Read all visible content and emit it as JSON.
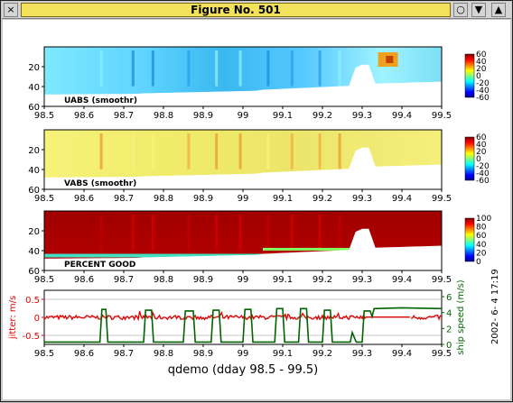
{
  "window": {
    "title": "Figure No. 501",
    "close_glyph": "×",
    "circle_glyph": "○",
    "min_glyph": "▼",
    "max_glyph": "▲"
  },
  "colors": {
    "title_bg": "#f2e15a",
    "jitter": "#e00000",
    "ship_speed": "#006400",
    "good_high": "#a00000"
  },
  "chart_data": [
    {
      "type": "heatmap",
      "panel_label": "UABS  (smoothr)",
      "x_ticks": [
        "98.5",
        "98.6",
        "98.7",
        "98.8",
        "98.9",
        "99",
        "99.1",
        "99.2",
        "99.3",
        "99.4",
        "99.5"
      ],
      "y_ticks": [
        "20",
        "40",
        "60"
      ],
      "ylim": [
        60,
        0
      ],
      "colorbar_ticks": [
        "60",
        "40",
        "20",
        "0",
        "-20",
        "-40",
        "-60"
      ],
      "colormap": "jet",
      "description_values": "mostly cyan/light blue (negative), yellow-orange patch near 99.35"
    },
    {
      "type": "heatmap",
      "panel_label": "VABS  (smoothr)",
      "x_ticks": [
        "98.5",
        "98.6",
        "98.7",
        "98.8",
        "98.9",
        "99",
        "99.1",
        "99.2",
        "99.3",
        "99.4",
        "99.5"
      ],
      "y_ticks": [
        "20",
        "40",
        "60"
      ],
      "ylim": [
        60,
        0
      ],
      "colorbar_ticks": [
        "60",
        "40",
        "20",
        "0",
        "-20",
        "-40",
        "-60"
      ],
      "colormap": "jet"
    },
    {
      "type": "heatmap",
      "panel_label": "PERCENT GOOD",
      "x_ticks": [
        "98.5",
        "98.6",
        "98.7",
        "98.8",
        "98.9",
        "99",
        "99.1",
        "99.2",
        "99.3",
        "99.4",
        "99.5"
      ],
      "y_ticks": [
        "20",
        "40",
        "60"
      ],
      "ylim": [
        60,
        0
      ],
      "colorbar_ticks": [
        "100",
        "80",
        "60",
        "40",
        "20",
        "0"
      ],
      "colormap": "jet"
    },
    {
      "type": "line",
      "x_ticks": [
        "98.5",
        "98.6",
        "98.7",
        "98.8",
        "98.9",
        "99",
        "99.1",
        "99.2",
        "99.3",
        "99.4",
        "99.5"
      ],
      "xlim": [
        98.5,
        99.5
      ],
      "left_axis": {
        "label": "jitter: m/s",
        "ticks": [
          "0.5",
          "0",
          "-0.5"
        ],
        "ylim": [
          -0.75,
          0.75
        ]
      },
      "right_axis": {
        "label": "ship speed (m/s)",
        "ticks": [
          "6",
          "4",
          "2",
          "0"
        ],
        "ylim": [
          0,
          6.8
        ]
      },
      "xlabel": "qdemo (dday 98.5 - 99.5)",
      "series": [
        {
          "name": "jitter",
          "color": "#e00000"
        },
        {
          "name": "ship speed",
          "color": "#006400"
        }
      ],
      "ship_speed_segments": [
        [
          98.5,
          0.3
        ],
        [
          98.64,
          0.3
        ],
        [
          98.645,
          4.4
        ],
        [
          98.655,
          4.4
        ],
        [
          98.66,
          0.3
        ],
        [
          98.75,
          0.3
        ],
        [
          98.755,
          4.3
        ],
        [
          98.77,
          4.3
        ],
        [
          98.775,
          0.3
        ],
        [
          98.85,
          0.3
        ],
        [
          98.855,
          4.2
        ],
        [
          98.875,
          4.2
        ],
        [
          98.88,
          0.3
        ],
        [
          98.92,
          0.3
        ],
        [
          98.925,
          4.3
        ],
        [
          98.94,
          4.3
        ],
        [
          98.945,
          0.3
        ],
        [
          99.0,
          0.3
        ],
        [
          99.005,
          4.4
        ],
        [
          99.02,
          4.4
        ],
        [
          99.025,
          0.3
        ],
        [
          99.08,
          0.3
        ],
        [
          99.085,
          4.5
        ],
        [
          99.1,
          4.5
        ],
        [
          99.105,
          0.3
        ],
        [
          99.14,
          0.3
        ],
        [
          99.145,
          4.5
        ],
        [
          99.16,
          4.5
        ],
        [
          99.165,
          0.3
        ],
        [
          99.2,
          0.3
        ],
        [
          99.205,
          4.3
        ],
        [
          99.22,
          4.3
        ],
        [
          99.225,
          0.3
        ],
        [
          99.27,
          0.3
        ],
        [
          99.275,
          1.5
        ],
        [
          99.285,
          0.3
        ],
        [
          99.3,
          0.3
        ],
        [
          99.305,
          4.2
        ],
        [
          99.32,
          4.2
        ],
        [
          99.325,
          3.5
        ],
        [
          99.33,
          4.5
        ],
        [
          99.4,
          4.6
        ],
        [
          99.5,
          4.5
        ]
      ]
    }
  ],
  "timestamp": "2002- 6- 4  17:19"
}
